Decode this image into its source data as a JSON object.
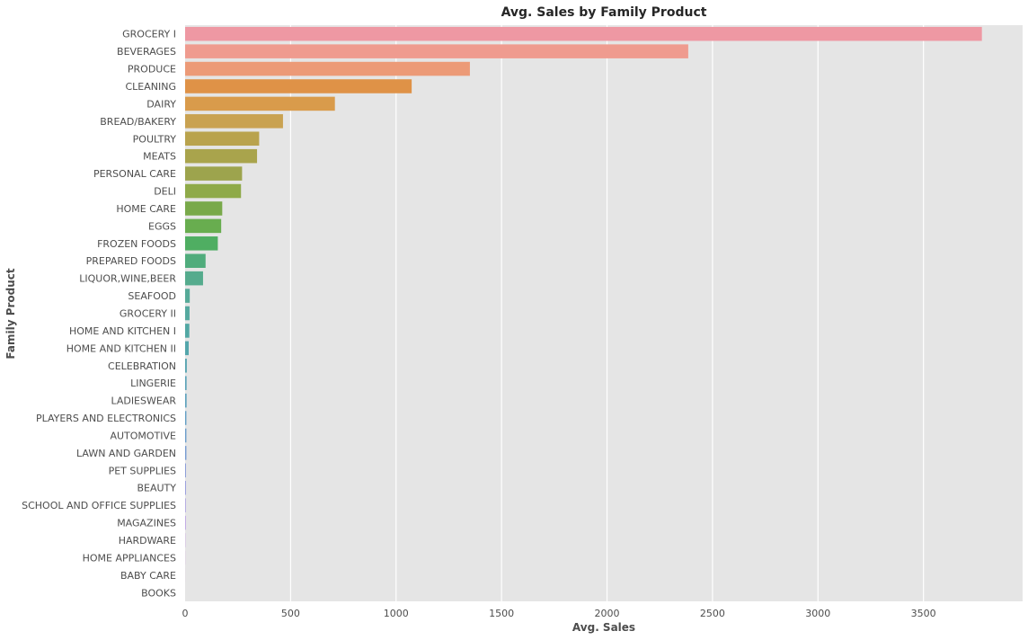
{
  "chart_data": {
    "type": "bar",
    "orientation": "horizontal",
    "title": "Avg. Sales by Family Product",
    "xlabel": "Avg. Sales",
    "ylabel": "Family Product",
    "xlim": [
      0,
      3970
    ],
    "xticks": [
      0,
      500,
      1000,
      1500,
      2000,
      2500,
      3000,
      3500
    ],
    "grid": true,
    "background": "#e5e5e5",
    "categories": [
      "GROCERY I",
      "BEVERAGES",
      "PRODUCE",
      "CLEANING",
      "DAIRY",
      "BREAD/BAKERY",
      "POULTRY",
      "MEATS",
      "PERSONAL CARE",
      "DELI",
      "HOME CARE",
      "EGGS",
      "FROZEN FOODS",
      "PREPARED FOODS",
      "LIQUOR,WINE,BEER",
      "SEAFOOD",
      "GROCERY II",
      "HOME AND KITCHEN I",
      "HOME AND KITCHEN II",
      "CELEBRATION",
      "LINGERIE",
      "LADIESWEAR",
      "PLAYERS AND ELECTRONICS",
      "AUTOMOTIVE",
      "LAWN AND GARDEN",
      "PET SUPPLIES",
      "BEAUTY",
      "SCHOOL AND OFFICE SUPPLIES",
      "MAGAZINES",
      "HARDWARE",
      "HOME APPLIANCES",
      "BABY CARE",
      "BOOKS"
    ],
    "values": [
      3777,
      2385,
      1350,
      1074,
      710,
      464,
      351,
      341,
      270,
      265,
      176,
      171,
      155,
      97,
      85,
      22,
      21,
      20,
      17,
      8,
      7,
      7,
      6,
      6,
      6,
      4,
      3.7,
      2.9,
      2.9,
      1.2,
      0.5,
      0.2,
      0.07
    ],
    "colors": [
      "#ee98a3",
      "#ef9b8f",
      "#ec9a77",
      "#df9247",
      "#d99b4b",
      "#c9a251",
      "#b9a34d",
      "#a9a44c",
      "#9da44d",
      "#8faa49",
      "#79a94a",
      "#68ad4f",
      "#4fae62",
      "#50ac7c",
      "#55ab8d",
      "#56aa98",
      "#55a99f",
      "#52a8a4",
      "#54a6ab",
      "#58a5b1",
      "#5ba3b8",
      "#5da1bd",
      "#629fc5",
      "#6b9dcb",
      "#779bd2",
      "#8699d8",
      "#9296dd",
      "#a294e1",
      "#b393e3",
      "#c391e2",
      "#d08ddd",
      "#dc8bd2",
      "#e58dc5"
    ]
  }
}
